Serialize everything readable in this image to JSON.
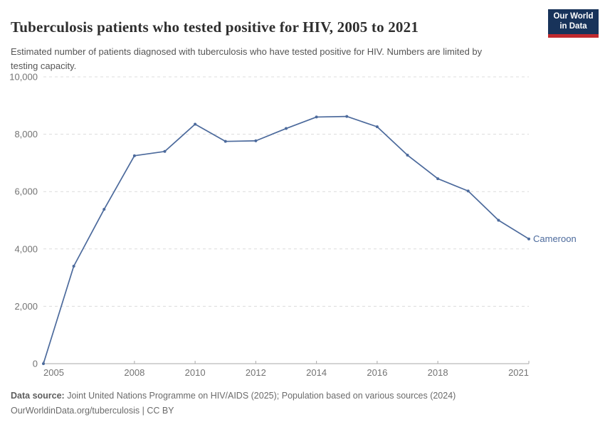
{
  "header": {
    "title": "Tuberculosis patients who tested positive for HIV, 2005 to 2021",
    "subtitle": "Estimated number of patients diagnosed with tuberculosis who have tested positive for HIV. Numbers are limited by testing capacity.",
    "logo": {
      "line1": "Our World",
      "line2": "in Data",
      "background_color": "#18335a",
      "accent_color": "#c0292e"
    }
  },
  "footer": {
    "source_label": "Data source:",
    "source_text": " Joint United Nations Programme on HIV/AIDS (2025); Population based on various sources (2024)",
    "url": "OurWorldinData.org/tuberculosis",
    "separator": " | ",
    "license": "CC BY"
  },
  "chart_data": {
    "type": "line",
    "title": "Tuberculosis patients who tested positive for HIV, 2005 to 2021",
    "xlabel": "",
    "ylabel": "",
    "x": [
      2005,
      2006,
      2007,
      2008,
      2009,
      2010,
      2011,
      2012,
      2013,
      2014,
      2015,
      2016,
      2017,
      2018,
      2019,
      2020,
      2021
    ],
    "series": [
      {
        "name": "Cameroon",
        "color": "#4C6A9C",
        "values": [
          0,
          3400,
          5380,
          7250,
          7400,
          8350,
          7750,
          7770,
          8200,
          8600,
          8620,
          8260,
          7270,
          6450,
          6020,
          5000,
          4350
        ]
      }
    ],
    "xticks": [
      2005,
      2008,
      2010,
      2012,
      2014,
      2016,
      2018,
      2021
    ],
    "yticks": [
      0,
      2000,
      4000,
      6000,
      8000,
      10000
    ],
    "xlim": [
      2005,
      2021
    ],
    "ylim": [
      0,
      10000
    ],
    "grid": "horizontal-dashed",
    "legend_position": "end-of-line-label",
    "colors": {
      "grid": "#dcdcdc",
      "axis": "#a8a8a8",
      "tick_label": "#737373"
    }
  }
}
